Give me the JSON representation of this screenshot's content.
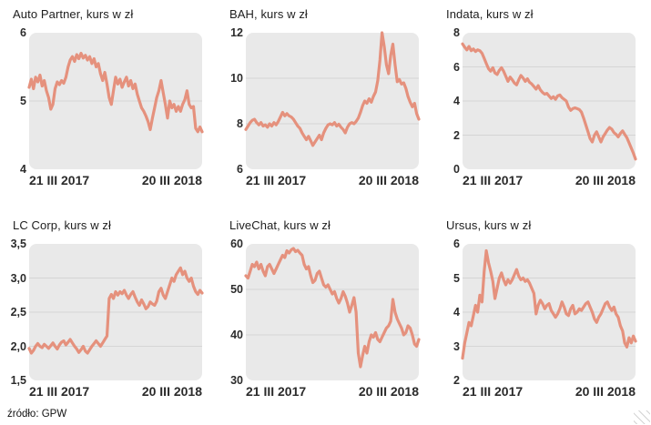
{
  "theme": {
    "line_color": "#e5917d",
    "plot_bg": "#e9e9e9",
    "gridline_color": "#d5d5d5"
  },
  "footer": {
    "source_label": "źródło: GPW"
  },
  "chart_data": [
    {
      "type": "line",
      "title": "Auto Partner, kurs w zł",
      "x_ticks": [
        "21 III 2017",
        "20 III 2018"
      ],
      "y_ticks": [
        "6",
        "5",
        "4"
      ],
      "ylim": [
        4,
        6
      ],
      "gridlines": [
        5
      ],
      "grid": true,
      "legend": "none",
      "series": [
        {
          "name": "kurs",
          "values": [
            5.2,
            5.32,
            5.18,
            5.35,
            5.28,
            5.38,
            5.22,
            5.3,
            5.15,
            5.05,
            4.88,
            4.95,
            5.18,
            5.28,
            5.24,
            5.3,
            5.26,
            5.35,
            5.5,
            5.6,
            5.65,
            5.58,
            5.68,
            5.62,
            5.7,
            5.63,
            5.67,
            5.6,
            5.65,
            5.55,
            5.62,
            5.5,
            5.55,
            5.4,
            5.3,
            5.42,
            5.25,
            5.05,
            4.95,
            5.15,
            5.35,
            5.25,
            5.32,
            5.2,
            5.28,
            5.35,
            5.22,
            5.3,
            5.18,
            5.25,
            5.1,
            5.0,
            4.9,
            4.85,
            4.78,
            4.7,
            4.58,
            4.75,
            4.9,
            5.05,
            5.15,
            5.3,
            5.12,
            4.95,
            4.75,
            5.0,
            4.9,
            4.95,
            4.85,
            4.92,
            4.85,
            4.95,
            5.02,
            5.15,
            4.95,
            4.9,
            4.92,
            4.6,
            4.55,
            4.62,
            4.55
          ]
        }
      ]
    },
    {
      "type": "line",
      "title": "BAH, kurs w zł",
      "x_ticks": [
        "21 III 2017",
        "20 III 2018"
      ],
      "y_ticks": [
        "12",
        "10",
        "8",
        "6"
      ],
      "ylim": [
        6,
        12
      ],
      "gridlines": [
        10,
        8
      ],
      "grid": true,
      "legend": "none",
      "series": [
        {
          "name": "kurs",
          "values": [
            7.75,
            7.9,
            8.05,
            8.15,
            8.2,
            8.05,
            7.95,
            8.05,
            7.9,
            7.95,
            7.85,
            8.0,
            7.9,
            8.05,
            7.95,
            8.1,
            8.3,
            8.5,
            8.35,
            8.45,
            8.35,
            8.3,
            8.2,
            8.05,
            7.9,
            7.8,
            7.6,
            7.45,
            7.3,
            7.45,
            7.25,
            7.05,
            7.2,
            7.35,
            7.5,
            7.3,
            7.6,
            7.8,
            7.95,
            8.0,
            7.95,
            8.05,
            7.9,
            7.98,
            7.85,
            7.75,
            7.6,
            7.85,
            8.0,
            8.05,
            8.0,
            8.1,
            8.25,
            8.5,
            8.8,
            9.0,
            8.9,
            9.1,
            8.95,
            9.2,
            9.4,
            9.9,
            10.8,
            12.0,
            11.4,
            10.6,
            10.2,
            11.0,
            11.5,
            10.6,
            9.85,
            9.95,
            9.75,
            9.8,
            9.55,
            9.2,
            8.95,
            8.75,
            8.9,
            8.45,
            8.2
          ]
        }
      ]
    },
    {
      "type": "line",
      "title": "Indata, kurs w zł",
      "x_ticks": [
        "21 III 2017",
        "20 III 2018"
      ],
      "y_ticks": [
        "8",
        "6",
        "4",
        "2",
        "0"
      ],
      "ylim": [
        0,
        8
      ],
      "gridlines": [
        6,
        4,
        2
      ],
      "grid": true,
      "legend": "none",
      "series": [
        {
          "name": "kurs",
          "values": [
            7.35,
            7.15,
            7.0,
            7.2,
            6.95,
            7.05,
            6.9,
            7.0,
            6.95,
            6.8,
            6.5,
            6.2,
            5.9,
            5.75,
            5.95,
            5.65,
            5.55,
            5.8,
            5.95,
            5.75,
            5.45,
            5.15,
            5.4,
            5.25,
            5.05,
            4.95,
            5.25,
            5.5,
            5.35,
            5.15,
            5.3,
            5.1,
            5.0,
            4.85,
            4.7,
            4.9,
            4.65,
            4.5,
            4.4,
            4.45,
            4.3,
            4.15,
            4.25,
            4.1,
            4.3,
            4.35,
            4.2,
            4.1,
            4.0,
            3.65,
            3.45,
            3.55,
            3.6,
            3.55,
            3.5,
            3.35,
            3.0,
            2.6,
            2.2,
            1.8,
            1.6,
            2.0,
            2.2,
            1.9,
            1.6,
            1.9,
            2.1,
            2.3,
            2.45,
            2.35,
            2.15,
            2.05,
            1.9,
            2.1,
            2.25,
            2.05,
            1.85,
            1.55,
            1.25,
            0.95,
            0.6
          ]
        }
      ]
    },
    {
      "type": "line",
      "title": "LC Corp, kurs w zł",
      "x_ticks": [
        "21 III 2017",
        "20 III 2018"
      ],
      "y_ticks": [
        "3,5",
        "3,0",
        "2,5",
        "2,0",
        "1,5"
      ],
      "ylim": [
        1.5,
        3.5
      ],
      "gridlines": [
        3.0,
        2.5,
        2.0
      ],
      "grid": true,
      "legend": "none",
      "series": [
        {
          "name": "kurs",
          "values": [
            1.97,
            1.9,
            1.94,
            2.0,
            2.04,
            2.0,
            1.98,
            2.03,
            2.0,
            1.97,
            2.01,
            2.05,
            2.0,
            1.96,
            2.02,
            2.06,
            2.08,
            2.02,
            2.06,
            2.1,
            2.05,
            2.0,
            1.96,
            1.91,
            1.95,
            2.0,
            1.93,
            1.9,
            1.95,
            2.0,
            2.04,
            2.08,
            2.04,
            2.0,
            2.05,
            2.1,
            2.15,
            2.7,
            2.76,
            2.7,
            2.8,
            2.75,
            2.8,
            2.77,
            2.82,
            2.75,
            2.7,
            2.76,
            2.8,
            2.72,
            2.65,
            2.6,
            2.68,
            2.62,
            2.55,
            2.58,
            2.65,
            2.62,
            2.6,
            2.66,
            2.8,
            2.85,
            2.75,
            2.7,
            2.8,
            2.9,
            3.0,
            2.95,
            3.05,
            3.1,
            3.15,
            3.05,
            3.1,
            3.0,
            2.95,
            3.0,
            2.88,
            2.8,
            2.76,
            2.82,
            2.78
          ]
        }
      ]
    },
    {
      "type": "line",
      "title": "LiveChat, kurs w zł",
      "x_ticks": [
        "21 III 2017",
        "20 III 2018"
      ],
      "y_ticks": [
        "60",
        "50",
        "40",
        "30"
      ],
      "ylim": [
        30,
        60
      ],
      "gridlines": [
        50,
        40
      ],
      "grid": true,
      "legend": "none",
      "series": [
        {
          "name": "kurs",
          "values": [
            53,
            52.5,
            54,
            55.5,
            55,
            56,
            54.5,
            55.5,
            54,
            53,
            55,
            55.5,
            54.5,
            53.5,
            54.5,
            55.5,
            56.5,
            57.5,
            57,
            58.5,
            58,
            58.7,
            59,
            58.3,
            58.6,
            58,
            57.5,
            55.5,
            54.5,
            55,
            53,
            51.5,
            52,
            53.5,
            54,
            52.5,
            51,
            50.5,
            51,
            50,
            49,
            49.5,
            48,
            47,
            48,
            49.5,
            48.5,
            47,
            45,
            46.5,
            48.2,
            45,
            36,
            33,
            35.5,
            37.5,
            36,
            38.5,
            40,
            39.5,
            40.5,
            39,
            38.5,
            39.5,
            40.5,
            41.5,
            42,
            43,
            47.8,
            45,
            43.5,
            42.5,
            41.5,
            40,
            40.5,
            42,
            41.5,
            40,
            38,
            37.5,
            39
          ]
        }
      ]
    },
    {
      "type": "line",
      "title": "Ursus, kurs w zł",
      "x_ticks": [
        "21 III 2017",
        "20 III 2018"
      ],
      "y_ticks": [
        "6",
        "5",
        "4",
        "3",
        "2"
      ],
      "ylim": [
        2,
        6
      ],
      "gridlines": [
        5,
        4,
        3
      ],
      "grid": true,
      "legend": "none",
      "series": [
        {
          "name": "kurs",
          "values": [
            2.65,
            3.1,
            3.4,
            3.7,
            3.6,
            3.9,
            4.2,
            4.0,
            4.5,
            4.3,
            5.2,
            5.8,
            5.45,
            5.2,
            4.9,
            4.4,
            4.7,
            5.0,
            5.15,
            4.95,
            4.8,
            4.95,
            4.85,
            4.95,
            5.1,
            5.25,
            5.05,
            4.95,
            5.0,
            4.9,
            4.95,
            4.85,
            4.7,
            4.55,
            3.95,
            4.2,
            4.35,
            4.25,
            4.1,
            4.2,
            4.25,
            4.05,
            3.95,
            3.85,
            3.95,
            4.1,
            4.3,
            4.15,
            3.95,
            3.9,
            4.1,
            4.2,
            3.95,
            4.0,
            4.1,
            4.05,
            4.15,
            4.25,
            4.3,
            4.15,
            4.0,
            3.8,
            3.7,
            3.85,
            3.95,
            4.1,
            4.25,
            4.3,
            4.15,
            4.05,
            4.15,
            3.95,
            3.85,
            3.6,
            3.45,
            3.1,
            2.98,
            3.25,
            3.1,
            3.3,
            3.15
          ]
        }
      ]
    }
  ]
}
